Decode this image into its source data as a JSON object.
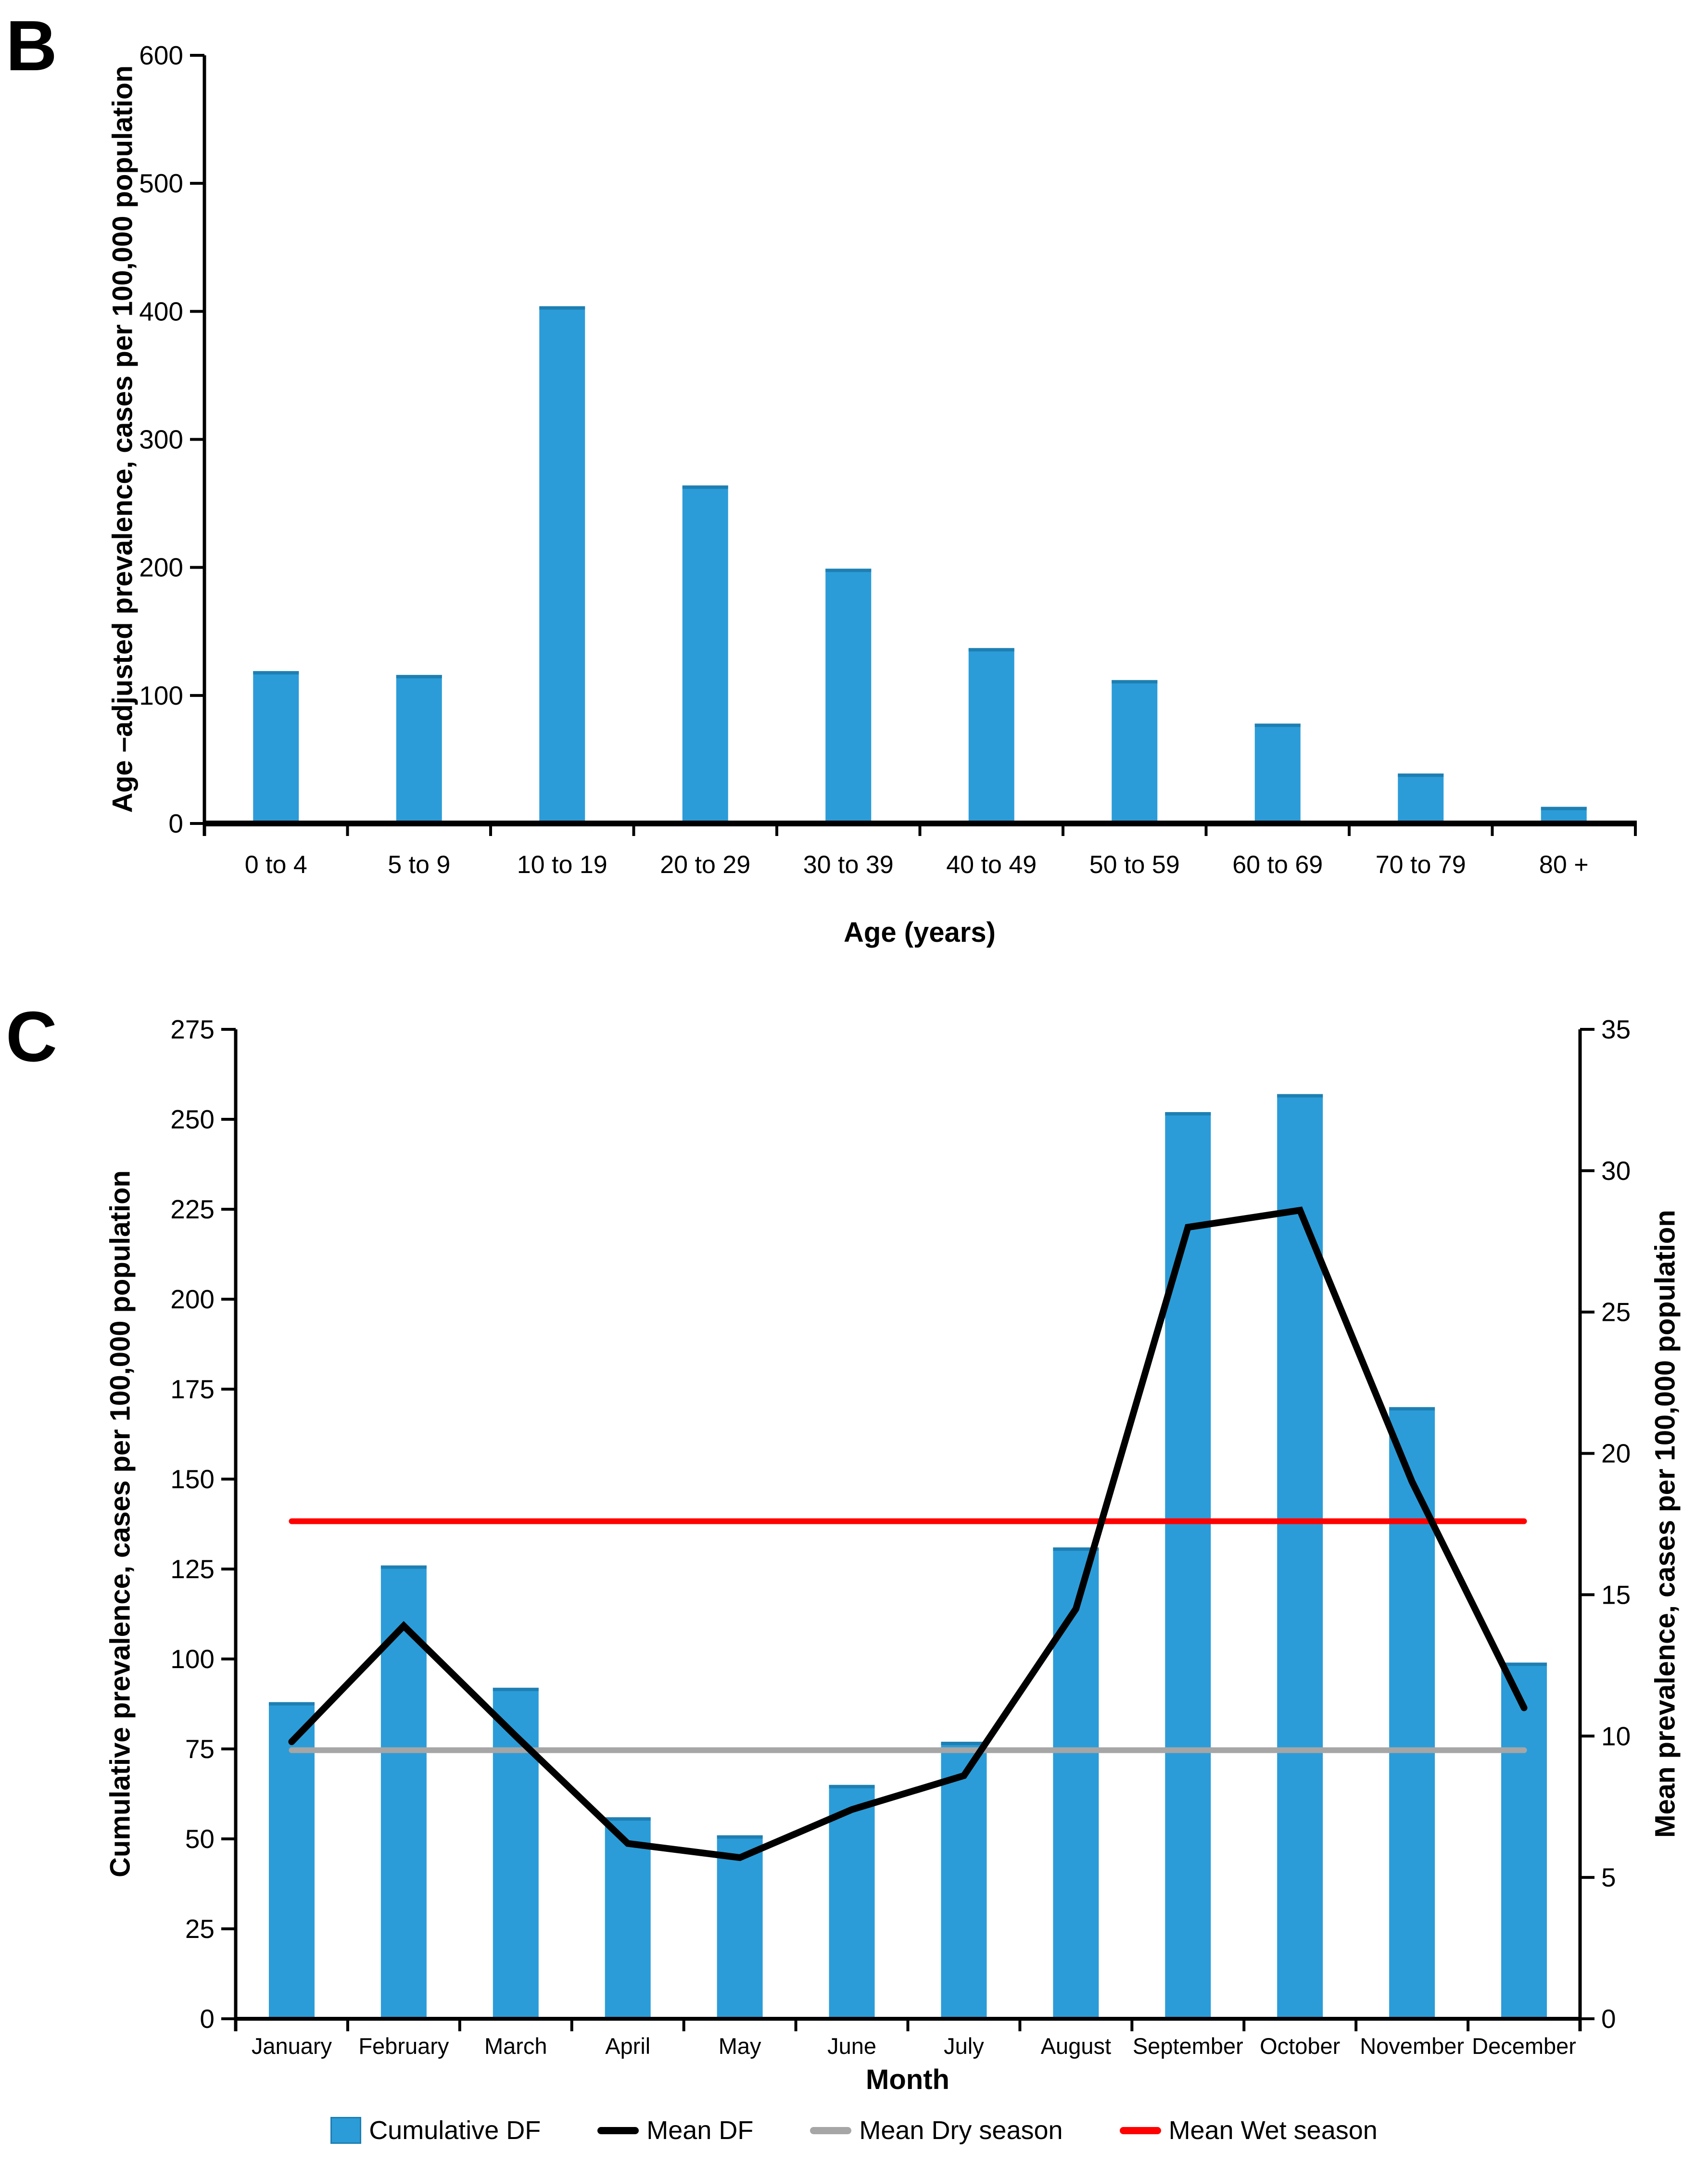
{
  "panels": {
    "b_label": "B",
    "c_label": "C"
  },
  "colors": {
    "bar_blue": "#2B9CD8",
    "bar_cap_blue": "#1E7FB2",
    "mean_df_black": "#000000",
    "dry_season_gray": "#A6A6A6",
    "wet_season_red": "#FF0000"
  },
  "chart_data": [
    {
      "id": "B",
      "type": "bar",
      "title": "",
      "xlabel": "Age (years)",
      "ylabel": "Age –adjusted prevalence, cases per 100,000 population",
      "categories": [
        "0 to 4",
        "5 to 9",
        "10 to 19",
        "20 to 29",
        "30 to 39",
        "40 to 49",
        "50 to 59",
        "60 to 69",
        "70 to 79",
        "80 +"
      ],
      "values": [
        119,
        116,
        404,
        264,
        199,
        137,
        112,
        78,
        39,
        13
      ],
      "ylim": [
        0,
        600
      ],
      "ytick_step": 100,
      "bar_color": "#2B9CD8",
      "grid": false,
      "legend_position": "none"
    },
    {
      "id": "C",
      "type": "bar+line",
      "title": "",
      "xlabel": "Month",
      "ylabel_left": "Cumulative prevalence, cases per 100,000 population",
      "ylabel_right": "Mean prevalence, cases per 100,000 population",
      "categories": [
        "January",
        "February",
        "March",
        "April",
        "May",
        "June",
        "July",
        "August",
        "September",
        "October",
        "November",
        "December"
      ],
      "series": [
        {
          "name": "Cumulative DF",
          "type": "bar",
          "axis": "left",
          "color": "#2B9CD8",
          "values": [
            88,
            126,
            92,
            56,
            51,
            65,
            77,
            131,
            252,
            257,
            170,
            99
          ]
        },
        {
          "name": "Mean DF",
          "type": "line",
          "axis": "right",
          "color": "#000000",
          "values": [
            9.8,
            13.9,
            10.0,
            6.2,
            5.7,
            7.4,
            8.6,
            14.5,
            28.0,
            28.6,
            19.0,
            11.0
          ]
        },
        {
          "name": "Mean Dry season",
          "type": "line",
          "axis": "right",
          "color": "#A6A6A6",
          "value": 9.5
        },
        {
          "name": "Mean Wet season",
          "type": "line",
          "axis": "right",
          "color": "#FF0000",
          "value": 17.6
        }
      ],
      "ylim_left": [
        0,
        275
      ],
      "ytick_step_left": 25,
      "ylim_right": [
        0,
        35
      ],
      "ytick_step_right": 5,
      "grid": false,
      "legend_position": "bottom"
    }
  ]
}
